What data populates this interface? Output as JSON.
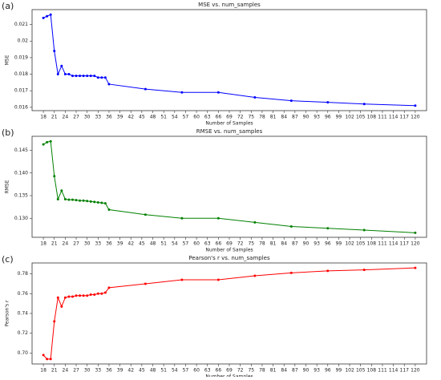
{
  "chart_data": [
    {
      "type": "line",
      "panel_label": "(a)",
      "title": "MSE vs. num_samples",
      "x_label": "Number of Samples",
      "y_label": "MSE",
      "color": "#0000ff",
      "x": [
        18,
        19,
        20,
        21,
        22,
        23,
        24,
        25,
        26,
        27,
        28,
        29,
        30,
        31,
        32,
        33,
        34,
        35,
        36,
        46,
        56,
        66,
        76,
        86,
        96,
        106,
        120
      ],
      "values": [
        0.0214,
        0.0215,
        0.0216,
        0.0194,
        0.018,
        0.0185,
        0.018,
        0.018,
        0.0179,
        0.0179,
        0.0179,
        0.0179,
        0.0179,
        0.0179,
        0.0179,
        0.0178,
        0.0178,
        0.0178,
        0.0174,
        0.0171,
        0.0169,
        0.0169,
        0.0166,
        0.0164,
        0.0163,
        0.0162,
        0.0161
      ],
      "xlim": [
        14.9,
        123.1
      ],
      "xticks": [
        18,
        21,
        24,
        27,
        30,
        33,
        36,
        39,
        42,
        45,
        48,
        51,
        54,
        57,
        60,
        63,
        66,
        69,
        72,
        75,
        78,
        81,
        84,
        87,
        90,
        93,
        96,
        99,
        102,
        105,
        108,
        111,
        114,
        117,
        120
      ],
      "ylim": [
        0.0158,
        0.0219
      ],
      "yticks": [
        0.016,
        0.017,
        0.018,
        0.019,
        0.02,
        {
          "value": 0.021,
          "label": "0.021"
        }
      ]
    },
    {
      "type": "line",
      "panel_label": "(b)",
      "title": "RMSE vs. num_samples",
      "x_label": "Number of Samples",
      "y_label": "RMSE",
      "color": "#008000",
      "x": [
        18,
        19,
        20,
        21,
        22,
        23,
        24,
        25,
        26,
        27,
        28,
        29,
        30,
        31,
        32,
        33,
        34,
        35,
        36,
        46,
        56,
        66,
        76,
        86,
        96,
        106,
        120
      ],
      "values": [
        0.1463,
        0.1468,
        0.147,
        0.1393,
        0.1342,
        0.1361,
        0.1342,
        0.1341,
        0.1341,
        0.134,
        0.1339,
        0.1339,
        0.1338,
        0.1337,
        0.1336,
        0.1335,
        0.1334,
        0.1333,
        0.1319,
        0.1308,
        0.13,
        0.13,
        0.1291,
        0.1282,
        0.1278,
        0.1274,
        0.1268
      ],
      "xlim": [
        14.9,
        123.1
      ],
      "xticks": [
        18,
        21,
        24,
        27,
        30,
        33,
        36,
        39,
        42,
        45,
        48,
        51,
        54,
        57,
        60,
        63,
        66,
        69,
        72,
        75,
        78,
        81,
        84,
        87,
        90,
        93,
        96,
        99,
        102,
        105,
        108,
        111,
        114,
        117,
        120
      ],
      "ylim": [
        0.1258,
        0.1481
      ],
      "yticks": [
        {
          "value": 0.13,
          "label": "0.130"
        },
        0.135,
        {
          "value": 0.14,
          "label": "0.140"
        },
        0.145
      ]
    },
    {
      "type": "line",
      "panel_label": "(c)",
      "title": "Pearson's r vs. num_samples",
      "x_label": "Number of Samples",
      "y_label": "Pearson's r",
      "color": "#ff0000",
      "x": [
        18,
        19,
        20,
        21,
        22,
        23,
        24,
        25,
        26,
        27,
        28,
        29,
        30,
        31,
        32,
        33,
        34,
        35,
        36,
        46,
        56,
        66,
        76,
        86,
        96,
        106,
        120
      ],
      "values": [
        0.698,
        0.694,
        0.694,
        0.732,
        0.756,
        0.747,
        0.756,
        0.757,
        0.757,
        0.758,
        0.758,
        0.758,
        0.758,
        0.759,
        0.759,
        0.76,
        0.76,
        0.761,
        0.766,
        0.77,
        0.774,
        0.774,
        0.778,
        0.781,
        0.783,
        0.784,
        0.786
      ],
      "xlim": [
        14.9,
        123.1
      ],
      "xticks": [
        18,
        21,
        24,
        27,
        30,
        33,
        36,
        39,
        42,
        45,
        48,
        51,
        54,
        57,
        60,
        63,
        66,
        69,
        72,
        75,
        78,
        81,
        84,
        87,
        90,
        93,
        96,
        99,
        102,
        105,
        108,
        111,
        114,
        117,
        120
      ],
      "ylim": [
        0.689,
        0.791
      ],
      "yticks": [
        {
          "value": 0.7,
          "label": "0.70"
        },
        0.72,
        0.74,
        0.76,
        0.78
      ]
    }
  ]
}
